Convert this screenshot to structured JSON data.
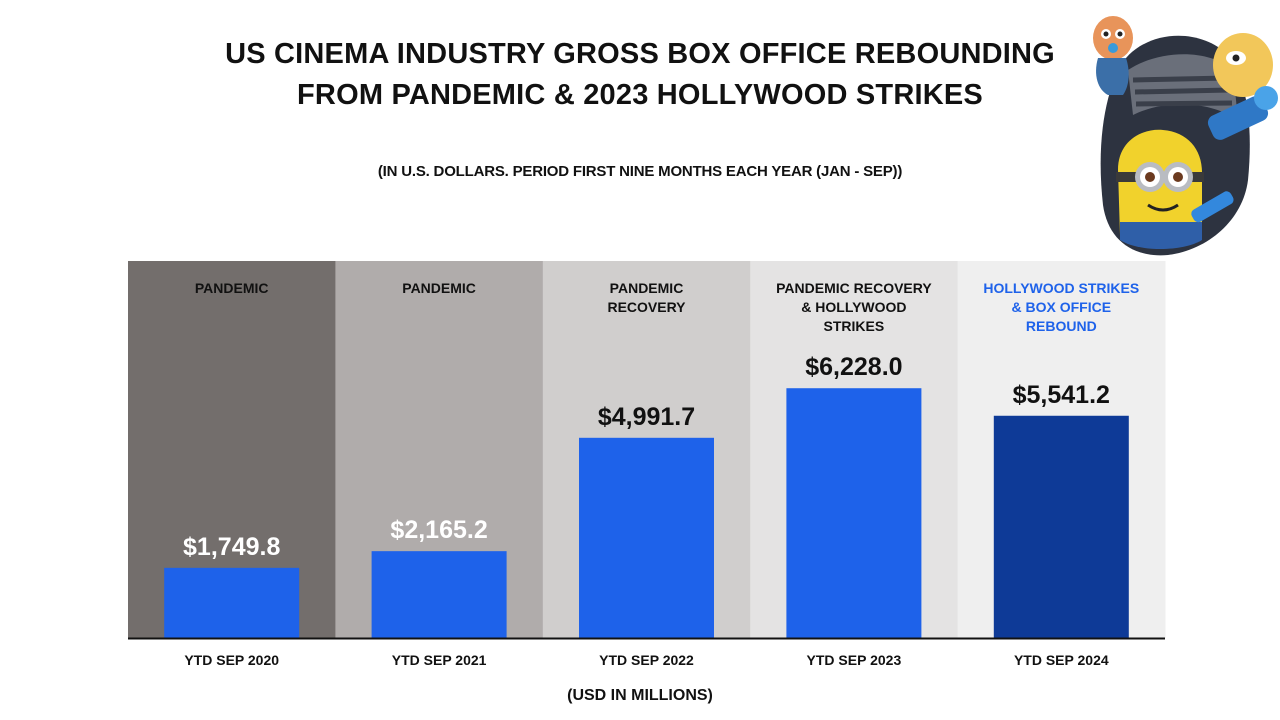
{
  "title_line1": "US CINEMA INDUSTRY GROSS BOX OFFICE REBOUNDING",
  "title_line2": "FROM PANDEMIC & 2023 HOLLYWOOD STRIKES",
  "subtitle": "(IN U.S. DOLLARS. PERIOD FIRST NINE MONTHS EACH YEAR (JAN - SEP))",
  "colors": {
    "bar": "#1e62ea",
    "bar_highlight": "#0e3a97",
    "band_1": "#736e6c",
    "band_2": "#b0acab",
    "band_3": "#d0cecd",
    "band_4": "#e4e3e3",
    "band_5": "#efefef",
    "highlight_text": "#1e62ea"
  },
  "chart_data": {
    "type": "bar",
    "title": "US CINEMA INDUSTRY GROSS BOX OFFICE REBOUNDING FROM PANDEMIC & 2023 HOLLYWOOD STRIKES",
    "subtitle": "(IN U.S. DOLLARS. PERIOD FIRST NINE MONTHS EACH YEAR (JAN - SEP))",
    "categories": [
      "YTD SEP 2020",
      "YTD SEP 2021",
      "YTD SEP 2022",
      "YTD SEP 2023",
      "YTD SEP 2024"
    ],
    "values": [
      1749.8,
      2165.2,
      4991.7,
      6228.0,
      5541.2
    ],
    "value_labels": [
      "$1,749.8",
      "$2,165.2",
      "$4,991.7",
      "$6,228.0",
      "$5,541.2"
    ],
    "period_labels": [
      [
        "PANDEMIC"
      ],
      [
        "PANDEMIC"
      ],
      [
        "PANDEMIC",
        "RECOVERY"
      ],
      [
        "PANDEMIC RECOVERY",
        "& HOLLYWOOD",
        "STRIKES"
      ],
      [
        "HOLLYWOOD STRIKES",
        "& BOX OFFICE",
        "REBOUND"
      ]
    ],
    "xlabel": "(USD IN MILLIONS)",
    "ylabel": "",
    "ylim": [
      0,
      9400
    ],
    "grid": false,
    "legend": "none"
  }
}
